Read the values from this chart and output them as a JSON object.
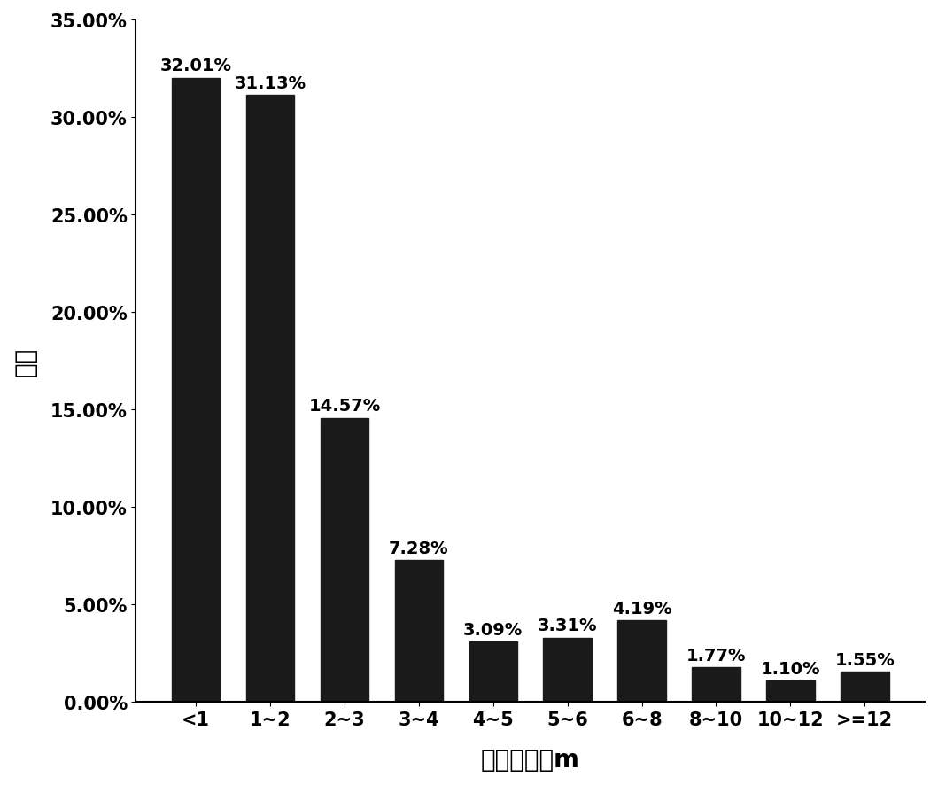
{
  "categories": [
    "<1",
    "1~2",
    "2~3",
    "3~4",
    "4~5",
    "5~6",
    "6~8",
    "8~10",
    "10~12",
    ">=12"
  ],
  "values": [
    32.01,
    31.13,
    14.57,
    7.28,
    3.09,
    3.31,
    4.19,
    1.77,
    1.1,
    1.55
  ],
  "labels": [
    "32.01%",
    "31.13%",
    "14.57%",
    "7.28%",
    "3.09%",
    "3.31%",
    "4.19%",
    "1.77%",
    "1.10%",
    "1.55%"
  ],
  "bar_color": "#1a1a1a",
  "xlabel": "单层厚度，m",
  "ylabel": "频率",
  "ylim": [
    0,
    35
  ],
  "yticks": [
    0,
    5,
    10,
    15,
    20,
    25,
    30,
    35
  ],
  "ytick_labels": [
    "0.00%",
    "5.00%",
    "10.00%",
    "15.00%",
    "20.00%",
    "25.00%",
    "30.00%",
    "35.00%"
  ],
  "xlabel_fontsize": 20,
  "ylabel_fontsize": 20,
  "tick_fontsize": 15,
  "label_fontsize": 14,
  "background_color": "#ffffff"
}
